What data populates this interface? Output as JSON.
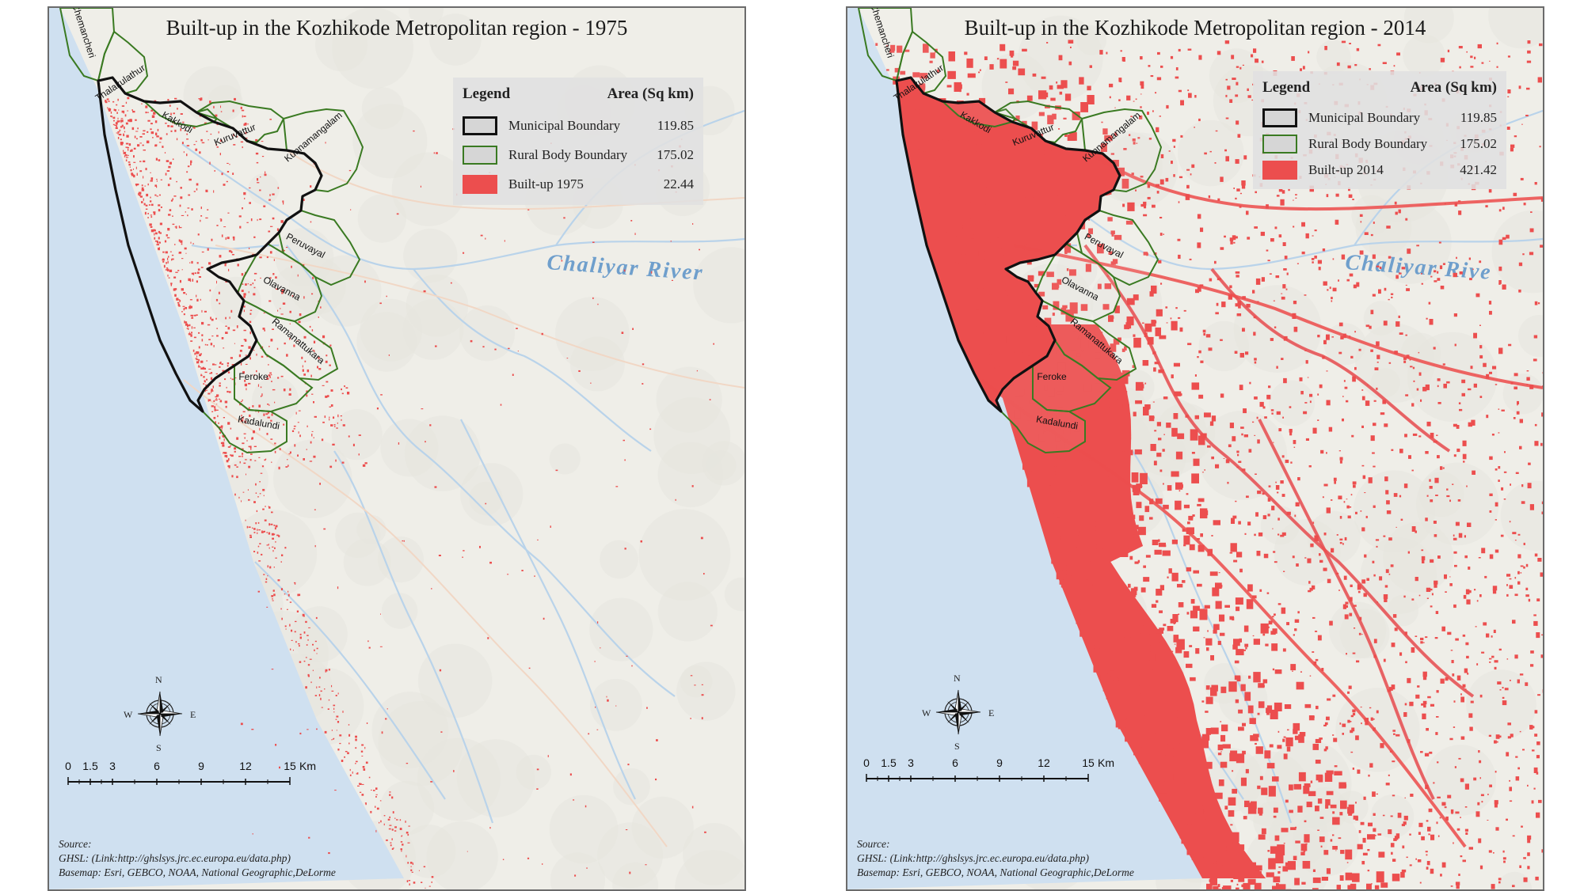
{
  "maps": [
    {
      "id": "map-1975",
      "title": "Built-up in the Kozhikode Metropolitan region - 1975",
      "legend": {
        "heading": "Legend",
        "area_heading": "Area (Sq km)",
        "rows": [
          {
            "label": "Municipal Boundary",
            "value": "119.85"
          },
          {
            "label": "Rural Body Boundary",
            "value": "175.02"
          },
          {
            "label": "Built-up 1975",
            "value": "22.44"
          }
        ]
      },
      "places": [
        "Chemancheri",
        "Thalakulathur",
        "Kakkodi",
        "Kuruvattur",
        "Kunnamangalam",
        "Peruvayal",
        "Olavanna",
        "Ramanattukara",
        "Feroke",
        "Kadalundi"
      ],
      "river_label": "Chaliyar River",
      "builtup_density": "low"
    },
    {
      "id": "map-2014",
      "title": "Built-up in the Kozhikode Metropolitan region - 2014",
      "legend": {
        "heading": "Legend",
        "area_heading": "Area (Sq km)",
        "rows": [
          {
            "label": "Municipal Boundary",
            "value": "119.85"
          },
          {
            "label": "Rural Body Boundary",
            "value": "175.02"
          },
          {
            "label": "Built-up 2014",
            "value": "421.42"
          }
        ]
      },
      "places": [
        "Chemancheri",
        "Thalakulathur",
        "Kakkodi",
        "Kuruvattur",
        "Kunnamangalam",
        "Peruvayal",
        "Olavanna",
        "Ramanattukara",
        "Feroke",
        "Kadalundi"
      ],
      "river_label": "Chaliyar Rive",
      "builtup_density": "high"
    }
  ],
  "compass": {
    "n": "N",
    "s": "S",
    "e": "E",
    "w": "W"
  },
  "scale": {
    "labels": [
      "0",
      "1.5",
      "3",
      "6",
      "9",
      "12",
      "15"
    ],
    "unit": "Km"
  },
  "source": {
    "line1": "Source:",
    "line2": "GHSL: (Link:http://ghslsys.jrc.ec.europa.eu/data.php)",
    "line3": "Basemap: Esri, GEBCO, NOAA, National Geographic,DeLorme"
  },
  "colors": {
    "sea": "#cfe0f0",
    "land": "#efeee8",
    "builtup": "#ec4e4e",
    "municipal_boundary": "#111111",
    "rural_boundary": "#3a7a22",
    "river": "#b9d3ea"
  }
}
